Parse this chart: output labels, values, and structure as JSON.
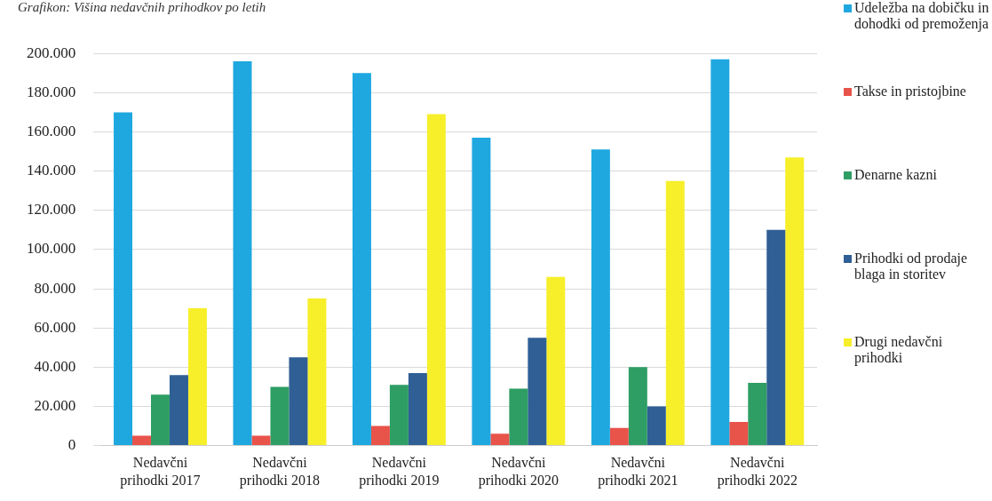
{
  "chart_data": {
    "type": "bar",
    "title": "Grafikon: Višina nedavčnih prihodkov po letih",
    "categories": [
      "Nedavčni prihodki 2017",
      "Nedavčni prihodki 2018",
      "Nedavčni prihodki 2019",
      "Nedavčni prihodki 2020",
      "Nedavčni prihodki 2021",
      "Nedavčni prihodki 2022"
    ],
    "series": [
      {
        "name": "Udeležba na dobičku in dohodki od premoženja",
        "color": "#1fa8e0",
        "values": [
          170000,
          196000,
          190000,
          157000,
          151000,
          197000
        ]
      },
      {
        "name": "Takse in pristojbine",
        "color": "#e8534a",
        "values": [
          5000,
          5000,
          10000,
          6000,
          9000,
          12000
        ]
      },
      {
        "name": "Denarne kazni",
        "color": "#2e9e64",
        "values": [
          26000,
          30000,
          31000,
          29000,
          40000,
          32000
        ]
      },
      {
        "name": "Prihodki od prodaje blaga in storitev",
        "color": "#2f5f95",
        "values": [
          36000,
          45000,
          37000,
          55000,
          20000,
          110000
        ]
      },
      {
        "name": "Drugi nedavčni prihodki",
        "color": "#f7ef2a",
        "values": [
          70000,
          75000,
          169000,
          86000,
          135000,
          147000
        ]
      }
    ],
    "ylim": [
      0,
      200000
    ],
    "yticks": [
      {
        "value": 0,
        "label": "0"
      },
      {
        "value": 20000,
        "label": "20.000"
      },
      {
        "value": 40000,
        "label": "40.000"
      },
      {
        "value": 60000,
        "label": "60.000"
      },
      {
        "value": 80000,
        "label": "80.000"
      },
      {
        "value": 100000,
        "label": "100.000"
      },
      {
        "value": 120000,
        "label": "120.000"
      },
      {
        "value": 140000,
        "label": "140.000"
      },
      {
        "value": 160000,
        "label": "160.000"
      },
      {
        "value": 180000,
        "label": "180.000"
      },
      {
        "value": 200000,
        "label": "200.000"
      }
    ],
    "grid": "y",
    "legend": "right"
  }
}
